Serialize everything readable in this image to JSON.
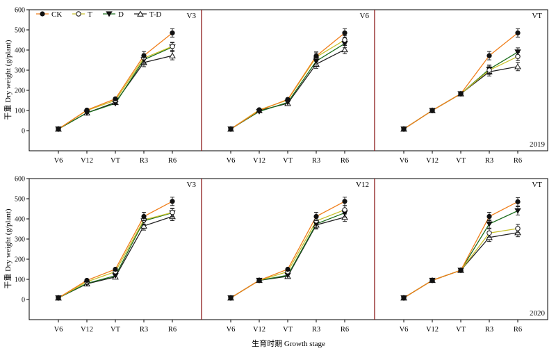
{
  "figure": {
    "y_axis_label": "干重 Dry weight (g/plant)",
    "x_axis_label": "生育时期 Growth stage"
  },
  "legend": {
    "entries": [
      {
        "label": "CK",
        "marker": "filled-circle",
        "color": "#f07f1c"
      },
      {
        "label": "T",
        "marker": "open-circle",
        "color": "#c9c12c"
      },
      {
        "label": "D",
        "marker": "filled-triangle-down",
        "color": "#1d6e1d"
      },
      {
        "label": "T-D",
        "marker": "open-triangle-up",
        "color": "#222222"
      }
    ]
  },
  "colors": {
    "CK": "#f07f1c",
    "T": "#c9c12c",
    "D": "#1d6e1d",
    "T-D": "#222222",
    "panel_border": "#8b1a1a",
    "axis": "#000000"
  },
  "chart_data": [
    {
      "type": "line",
      "stage_label": "V3",
      "year_label": "",
      "categories": [
        "V6",
        "V12",
        "VT",
        "R3",
        "R6"
      ],
      "ylim": [
        -100,
        600
      ],
      "yticks": [
        0,
        100,
        200,
        300,
        400,
        500,
        600
      ],
      "series": [
        {
          "name": "CK",
          "values": [
            8,
            102,
            158,
            372,
            485
          ]
        },
        {
          "name": "T",
          "values": [
            8,
            100,
            150,
            360,
            418
          ]
        },
        {
          "name": "D",
          "values": [
            8,
            88,
            135,
            352,
            415
          ]
        },
        {
          "name": "T-D",
          "values": [
            8,
            88,
            140,
            338,
            372
          ]
        }
      ]
    },
    {
      "type": "line",
      "stage_label": "V6",
      "year_label": "",
      "categories": [
        "V6",
        "V12",
        "VT",
        "R3",
        "R6"
      ],
      "ylim": [
        -100,
        600
      ],
      "yticks": [
        0,
        100,
        200,
        300,
        400,
        500,
        600
      ],
      "series": [
        {
          "name": "CK",
          "values": [
            8,
            100,
            155,
            370,
            485
          ]
        },
        {
          "name": "T",
          "values": [
            8,
            103,
            152,
            365,
            450
          ]
        },
        {
          "name": "D",
          "values": [
            8,
            95,
            140,
            345,
            432
          ]
        },
        {
          "name": "T-D",
          "values": [
            8,
            100,
            135,
            330,
            402
          ]
        }
      ]
    },
    {
      "type": "line",
      "stage_label": "VT",
      "year_label": "2019",
      "categories": [
        "V6",
        "V12",
        "VT",
        "R3",
        "R6"
      ],
      "ylim": [
        -100,
        600
      ],
      "yticks": [
        0,
        100,
        200,
        300,
        400,
        500,
        600
      ],
      "series": [
        {
          "name": "CK",
          "values": [
            8,
            100,
            183,
            372,
            485
          ]
        },
        {
          "name": "T",
          "values": [
            8,
            100,
            183,
            300,
            368
          ]
        },
        {
          "name": "D",
          "values": [
            8,
            100,
            183,
            305,
            390
          ]
        },
        {
          "name": "T-D",
          "values": [
            8,
            100,
            183,
            292,
            318
          ]
        }
      ]
    },
    {
      "type": "line",
      "stage_label": "V3",
      "year_label": "",
      "categories": [
        "V6",
        "V12",
        "VT",
        "R3",
        "R6"
      ],
      "ylim": [
        -100,
        600
      ],
      "yticks": [
        0,
        100,
        200,
        300,
        400,
        500,
        600
      ],
      "series": [
        {
          "name": "CK",
          "values": [
            8,
            95,
            150,
            412,
            487
          ]
        },
        {
          "name": "T",
          "values": [
            8,
            88,
            138,
            395,
            432
          ]
        },
        {
          "name": "D",
          "values": [
            8,
            80,
            118,
            390,
            430
          ]
        },
        {
          "name": "T-D",
          "values": [
            8,
            78,
            112,
            365,
            412
          ]
        }
      ]
    },
    {
      "type": "line",
      "stage_label": "V12",
      "year_label": "",
      "categories": [
        "V6",
        "V12",
        "VT",
        "R3",
        "R6"
      ],
      "ylim": [
        -100,
        600
      ],
      "yticks": [
        0,
        100,
        200,
        300,
        400,
        500,
        600
      ],
      "series": [
        {
          "name": "CK",
          "values": [
            8,
            95,
            150,
            412,
            487
          ]
        },
        {
          "name": "T",
          "values": [
            8,
            95,
            138,
            390,
            445
          ]
        },
        {
          "name": "D",
          "values": [
            8,
            95,
            120,
            375,
            430
          ]
        },
        {
          "name": "T-D",
          "values": [
            8,
            95,
            115,
            370,
            408
          ]
        }
      ]
    },
    {
      "type": "line",
      "stage_label": "VT",
      "year_label": "2020",
      "categories": [
        "V6",
        "V12",
        "VT",
        "R3",
        "R6"
      ],
      "ylim": [
        -100,
        600
      ],
      "yticks": [
        0,
        100,
        200,
        300,
        400,
        500,
        600
      ],
      "series": [
        {
          "name": "CK",
          "values": [
            8,
            95,
            145,
            412,
            485
          ]
        },
        {
          "name": "T",
          "values": [
            8,
            95,
            145,
            330,
            352
          ]
        },
        {
          "name": "D",
          "values": [
            8,
            95,
            145,
            375,
            440
          ]
        },
        {
          "name": "T-D",
          "values": [
            8,
            95,
            145,
            308,
            332
          ]
        }
      ]
    }
  ]
}
